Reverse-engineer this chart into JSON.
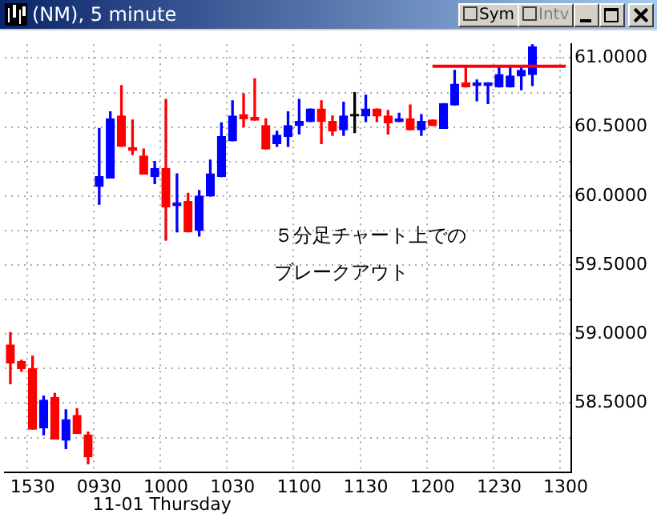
{
  "chart_data": {
    "type": "candlestick",
    "title": "(NM), 5 minute",
    "categories": [
      null,
      null,
      "1530",
      null,
      null,
      null,
      null,
      null,
      "0930",
      null,
      null,
      null,
      null,
      null,
      "1000",
      null,
      null,
      null,
      null,
      null,
      "1030",
      null,
      null,
      null,
      null,
      null,
      "1100",
      null,
      null,
      null,
      null,
      null,
      "1130",
      null,
      null,
      null,
      null,
      null,
      "1200",
      null,
      null,
      null,
      null,
      null,
      "1230",
      null,
      null,
      null,
      null,
      null,
      "1300"
    ],
    "ohlc": [
      [
        58.92,
        59.01,
        58.64,
        58.79
      ],
      [
        58.8,
        58.81,
        58.73,
        58.75
      ],
      [
        58.75,
        58.84,
        58.31,
        58.31
      ],
      [
        58.32,
        58.55,
        58.27,
        58.52
      ],
      [
        58.54,
        58.57,
        58.24,
        58.24
      ],
      [
        58.23,
        58.45,
        58.17,
        58.38
      ],
      [
        58.41,
        58.46,
        58.28,
        58.28
      ],
      [
        58.27,
        58.29,
        58.06,
        58.11
      ],
      [
        60.07,
        60.49,
        59.94,
        60.14
      ],
      [
        60.13,
        60.61,
        60.13,
        60.56
      ],
      [
        60.58,
        60.8,
        60.36,
        60.36
      ],
      [
        60.35,
        60.55,
        60.3,
        60.33
      ],
      [
        60.29,
        60.34,
        60.16,
        60.16
      ],
      [
        60.14,
        60.25,
        60.09,
        60.2
      ],
      [
        60.2,
        60.7,
        59.68,
        59.92
      ],
      [
        59.93,
        60.16,
        59.74,
        59.95
      ],
      [
        59.96,
        60.02,
        59.74,
        59.74
      ],
      [
        59.75,
        60.04,
        59.71,
        60.0
      ],
      [
        60.0,
        60.26,
        60.0,
        60.16
      ],
      [
        60.14,
        60.53,
        60.14,
        60.43
      ],
      [
        60.4,
        60.69,
        60.4,
        60.58
      ],
      [
        60.59,
        60.74,
        60.5,
        60.56
      ],
      [
        60.57,
        60.85,
        60.55,
        60.55
      ],
      [
        60.51,
        60.56,
        60.34,
        60.34
      ],
      [
        60.38,
        60.47,
        60.36,
        60.44
      ],
      [
        60.43,
        60.61,
        60.36,
        60.51
      ],
      [
        60.51,
        60.7,
        60.45,
        60.54
      ],
      [
        60.54,
        60.63,
        60.54,
        60.63
      ],
      [
        60.63,
        60.69,
        60.38,
        60.54
      ],
      [
        60.54,
        60.58,
        60.44,
        60.47
      ],
      [
        60.48,
        60.68,
        60.44,
        60.58
      ],
      [
        60.58,
        60.75,
        60.46,
        60.58
      ],
      [
        60.58,
        60.73,
        60.54,
        60.63
      ],
      [
        60.63,
        60.63,
        60.54,
        60.58
      ],
      [
        60.58,
        60.62,
        60.45,
        60.53
      ],
      [
        60.54,
        60.6,
        60.54,
        60.56
      ],
      [
        60.56,
        60.66,
        60.48,
        60.48
      ],
      [
        60.48,
        60.59,
        60.44,
        60.54
      ],
      [
        60.55,
        60.55,
        60.51,
        60.51
      ],
      [
        60.49,
        60.67,
        60.49,
        60.67
      ],
      [
        60.66,
        60.91,
        60.66,
        60.81
      ],
      [
        60.82,
        60.93,
        60.79,
        60.79
      ],
      [
        60.8,
        60.84,
        60.69,
        60.82
      ],
      [
        60.8,
        60.82,
        60.67,
        60.82
      ],
      [
        60.79,
        60.93,
        60.79,
        60.88
      ],
      [
        60.79,
        60.93,
        60.79,
        60.87
      ],
      [
        60.87,
        60.94,
        60.77,
        60.91
      ],
      [
        60.88,
        61.12,
        60.8,
        61.08
      ],
      null,
      null,
      null
    ],
    "colors": [
      "#ff0000",
      "#ff0000",
      "#ff0000",
      "#0000ff",
      "#ff0000",
      "#0000ff",
      "#ff0000",
      "#ff0000",
      "#0000ff",
      "#0000ff",
      "#ff0000",
      "#ff0000",
      "#ff0000",
      "#0000ff",
      "#ff0000",
      "#0000ff",
      "#ff0000",
      "#0000ff",
      "#0000ff",
      "#0000ff",
      "#0000ff",
      "#ff0000",
      "#ff0000",
      "#ff0000",
      "#0000ff",
      "#0000ff",
      "#0000ff",
      "#0000ff",
      "#ff0000",
      "#ff0000",
      "#0000ff",
      "#000000",
      "#0000ff",
      "#ff0000",
      "#ff0000",
      "#0000ff",
      "#ff0000",
      "#0000ff",
      "#ff0000",
      "#0000ff",
      "#0000ff",
      "#ff0000",
      "#0000ff",
      "#0000ff",
      "#0000ff",
      "#0000ff",
      "#0000ff",
      "#0000ff",
      null,
      null,
      null
    ],
    "series": [
      {
        "type": "line",
        "color": "#ff0000",
        "values": [
          null,
          null,
          null,
          null,
          null,
          null,
          null,
          null,
          null,
          null,
          null,
          null,
          null,
          null,
          null,
          null,
          null,
          null,
          null,
          null,
          null,
          null,
          null,
          null,
          null,
          null,
          null,
          null,
          null,
          null,
          null,
          null,
          null,
          null,
          null,
          null,
          null,
          null,
          60.94,
          60.94,
          60.94,
          60.94,
          60.94,
          60.94,
          60.94,
          60.94,
          60.94,
          60.94,
          60.94,
          60.94,
          60.94
        ]
      }
    ],
    "ylim": [
      58.0,
      61.1
    ],
    "yticks": [
      {
        "value": 58.25,
        "label": null
      },
      {
        "value": 58.5,
        "label": "58.5000"
      },
      {
        "value": 58.75,
        "label": null
      },
      {
        "value": 59.0,
        "label": "59.0000"
      },
      {
        "value": 59.25,
        "label": null
      },
      {
        "value": 59.5,
        "label": "59.5000"
      },
      {
        "value": 59.75,
        "label": null
      },
      {
        "value": 60.0,
        "label": "60.0000"
      },
      {
        "value": 60.25,
        "label": null
      },
      {
        "value": 60.5,
        "label": "60.5000"
      },
      {
        "value": 60.75,
        "label": null
      },
      {
        "value": 61.0,
        "label": "61.0000"
      }
    ],
    "grid": true,
    "annotations": [
      "Sym",
      "Intv",
      "５分足チャート上での",
      "ブレークアウト",
      "11-01 Thursday"
    ]
  }
}
